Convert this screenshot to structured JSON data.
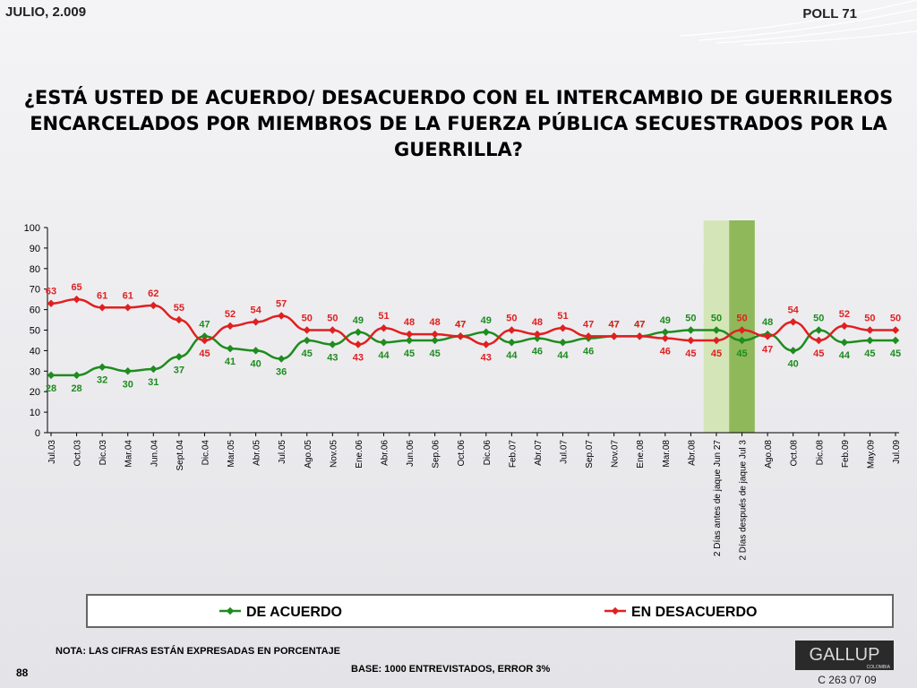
{
  "header": {
    "date": "JULIO, 2.009",
    "poll": "POLL 71"
  },
  "footer": {
    "note": "NOTA: LAS CIFRAS ESTÁN EXPRESADAS EN PORCENTAJE",
    "page": "88",
    "base": "BASE: 1000 ENTREVISTADOS, ERROR 3%",
    "logo": "GALLUP",
    "logo_sub": "COLOMBIA",
    "code": "C 263 07 09"
  },
  "chart_data": {
    "type": "line",
    "title": "¿ESTÁ USTED DE ACUERDO/ DESACUERDO CON EL INTERCAMBIO DE GUERRILEROS ENCARCELADOS POR MIEMBROS DE LA FUERZA PÚBLICA SECUESTRADOS POR LA GUERRILLA?",
    "categories": [
      "Jul.03",
      "Oct.03",
      "Dic.03",
      "Mar.04",
      "Jun.04",
      "Sept.04",
      "Dic.04",
      "Mar.05",
      "Abr.05",
      "Jul.05",
      "Ago.05",
      "Nov.05",
      "Ene.06",
      "Abr.06",
      "Jun.06",
      "Sep.06",
      "Oct.06",
      "Dic.06",
      "Feb.07",
      "Abr.07",
      "Jul.07",
      "Sep.07",
      "Nov.07",
      "Ene.08",
      "Mar.08",
      "Abr.08",
      "2 Días antes de jaque Jun 27",
      "2 Días después de jaque Jul 3",
      "Ago.08",
      "Oct.08",
      "Dic.08",
      "Feb.09",
      "May.09",
      "Jul.09"
    ],
    "series": [
      {
        "name": "DE ACUERDO",
        "color": "#1e8c1e",
        "values": [
          28,
          28,
          32,
          30,
          31,
          37,
          47,
          41,
          40,
          36,
          45,
          43,
          49,
          44,
          45,
          45,
          47,
          49,
          44,
          46,
          44,
          46,
          47,
          47,
          49,
          50,
          50,
          45,
          48,
          40,
          50,
          44,
          45,
          45
        ]
      },
      {
        "name": "EN DESACUERDO",
        "color": "#e02020",
        "values": [
          63,
          65,
          61,
          61,
          62,
          55,
          45,
          52,
          54,
          57,
          50,
          50,
          43,
          51,
          48,
          48,
          47,
          43,
          50,
          48,
          51,
          47,
          47,
          47,
          46,
          45,
          45,
          50,
          47,
          54,
          45,
          52,
          50,
          50
        ]
      }
    ],
    "ylim": [
      0,
      100
    ],
    "yticks": [
      0,
      10,
      20,
      30,
      40,
      50,
      60,
      70,
      80,
      90,
      100
    ]
  }
}
